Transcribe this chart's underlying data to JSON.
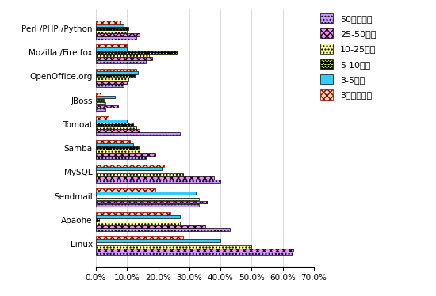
{
  "categories": [
    "Linux",
    "Apaohe",
    "Sendmail",
    "MySQL",
    "Samba",
    "Tomoat",
    "JBoss",
    "OpenOffice.org",
    "Mozilla /Fire fox",
    "Perl /PHP /Python"
  ],
  "series": [
    {
      "label": "50億元以上",
      "color": "#cc99ff",
      "edgecolor": "#000000",
      "hatch": "....",
      "values": [
        63.0,
        43.0,
        33.0,
        40.0,
        16.0,
        27.0,
        3.0,
        9.0,
        16.0,
        13.0
      ]
    },
    {
      "label": "25-50億元",
      "color": "#ff88ff",
      "edgecolor": "#000000",
      "hatch": "xxxx",
      "values": [
        63.5,
        35.0,
        36.0,
        38.0,
        19.0,
        14.0,
        7.0,
        10.0,
        18.0,
        14.0
      ]
    },
    {
      "label": "10-25億元",
      "color": "#ffff99",
      "edgecolor": "#000000",
      "hatch": "....",
      "values": [
        50.0,
        27.0,
        33.0,
        28.0,
        14.0,
        13.0,
        3.0,
        10.5,
        17.0,
        10.0
      ]
    },
    {
      "label": "5-10億元",
      "color": "#ccff33",
      "edgecolor": "#000000",
      "hatch": "****",
      "values": [
        0.0,
        1.0,
        0.0,
        0.0,
        14.0,
        12.0,
        2.5,
        12.5,
        26.0,
        10.5
      ]
    },
    {
      "label": "3-5億元",
      "color": "#33ccff",
      "edgecolor": "#000000",
      "hatch": "",
      "values": [
        40.0,
        27.0,
        32.0,
        21.0,
        12.0,
        10.0,
        6.0,
        13.5,
        10.0,
        9.0
      ]
    },
    {
      "label": "3億元及以下",
      "color": "#ffddaa",
      "edgecolor": "#880000",
      "hatch": "xxxx",
      "values": [
        28.0,
        24.0,
        19.0,
        22.0,
        11.0,
        4.0,
        1.5,
        13.0,
        10.0,
        8.0
      ]
    }
  ],
  "xlim": [
    0,
    70
  ],
  "xtick_values": [
    0,
    10,
    20,
    30,
    40,
    50,
    60,
    70
  ],
  "xtick_labels": [
    "0.0%",
    "10.0%",
    "20.0%",
    "30.0%",
    "40.0%",
    "50.0%",
    "60.0%",
    "70.0%"
  ]
}
